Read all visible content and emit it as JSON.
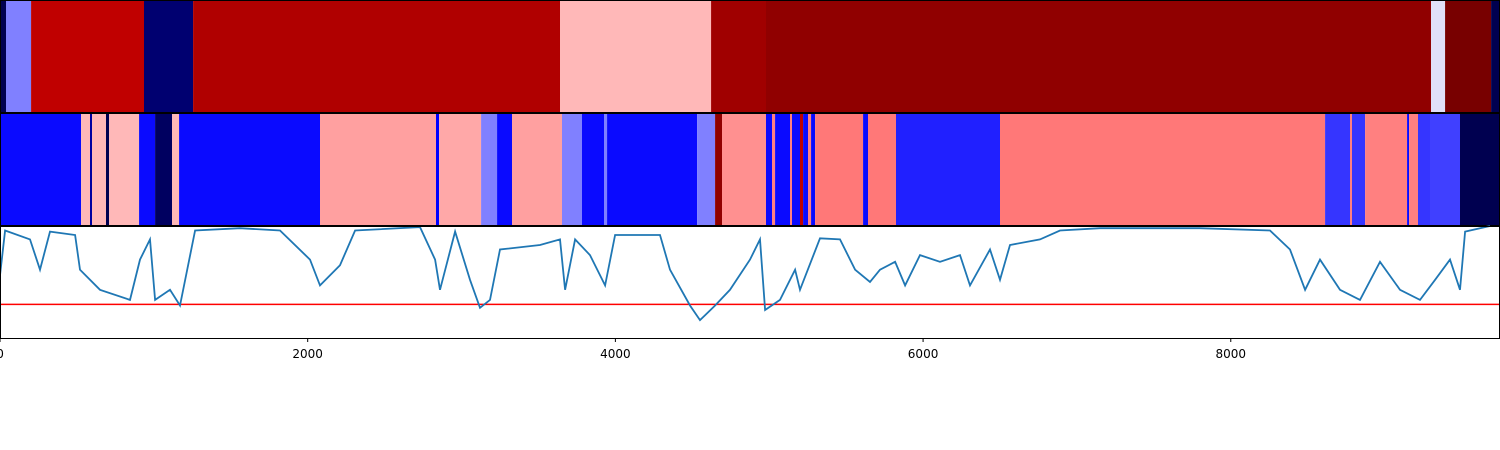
{
  "chart_data": [
    {
      "type": "bands",
      "xlim": [
        0,
        9750
      ],
      "edges": [
        0,
        39,
        202,
        936,
        1255,
        3640,
        4622,
        4979,
        9302,
        9393,
        9692,
        9750
      ],
      "colors": [
        "#000050",
        "#8080ff",
        "#c00000",
        "#000070",
        "#b00000",
        "#ffb8b8",
        "#a00000",
        "#900000",
        "#e0e0f8",
        "#780000",
        "#000050"
      ]
    },
    {
      "type": "bands",
      "xlim": [
        0,
        9750
      ],
      "edges": [
        0,
        527,
        585,
        598,
        689,
        709,
        904,
        1008,
        1118,
        1164,
        2080,
        2834,
        2854,
        3127,
        3231,
        3328,
        3653,
        3783,
        3926,
        3946,
        4531,
        4648,
        4693,
        4979,
        5018,
        5038,
        5135,
        5148,
        5200,
        5220,
        5252,
        5272,
        5298,
        5610,
        5642,
        5824,
        6500,
        8613,
        8775,
        8788,
        8873,
        9146,
        9159,
        9217,
        9295,
        9490,
        9750
      ],
      "colors": [
        "#0a0aff",
        "#ffb8b8",
        "#0000a0",
        "#ffb8b8",
        "#000050",
        "#ffb8b8",
        "#0a0aff",
        "#000060",
        "#ffb8b8",
        "#0a0aff",
        "#ffa0a0",
        "#0000ff",
        "#ffa8a8",
        "#8080ff",
        "#0a0aff",
        "#ffa0a0",
        "#8080ff",
        "#0a0aff",
        "#8080ff",
        "#0a0aff",
        "#8080ff",
        "#900000",
        "#ff9090",
        "#0a0aff",
        "#ff8080",
        "#0a0aff",
        "#ff8080",
        "#0a0aff",
        "#c00000",
        "#0a0aff",
        "#ff8080",
        "#0a0aff",
        "#ff7878",
        "#0a0aff",
        "#ff7878",
        "#2020ff",
        "#ff7878",
        "#3535ff",
        "#ff8080",
        "#3535ff",
        "#ff8080",
        "#0a0aff",
        "#ff8080",
        "#3535ff",
        "#4040ff",
        "#000050"
      ]
    },
    {
      "type": "line",
      "xlim": [
        0,
        9750
      ],
      "ylim": [
        0,
        1
      ],
      "color": "#1f77b4",
      "hline": 0.3,
      "hline_color": "#ff0000",
      "xticks": [
        0,
        2000,
        4000,
        6000,
        8000
      ],
      "x": [
        0,
        33,
        195,
        260,
        325,
        488,
        520,
        650,
        845,
        910,
        975,
        1008,
        1105,
        1170,
        1268,
        1560,
        1820,
        2015,
        2080,
        2210,
        2308,
        2730,
        2828,
        2860,
        2958,
        3055,
        3120,
        3185,
        3250,
        3510,
        3640,
        3673,
        3738,
        3835,
        3933,
        3998,
        4290,
        4355,
        4485,
        4550,
        4648,
        4745,
        4875,
        4940,
        4973,
        5070,
        5168,
        5200,
        5330,
        5460,
        5558,
        5655,
        5720,
        5818,
        5883,
        5980,
        6110,
        6240,
        6305,
        6435,
        6500,
        6565,
        6760,
        6890,
        7150,
        7800,
        8255,
        8385,
        8483,
        8580,
        8710,
        8840,
        8970,
        9100,
        9230,
        9328,
        9425,
        9490,
        9523,
        9685
      ],
      "values": [
        0.56,
        0.96,
        0.88,
        0.61,
        0.95,
        0.92,
        0.61,
        0.43,
        0.34,
        0.7,
        0.88,
        0.34,
        0.43,
        0.29,
        0.96,
        0.98,
        0.96,
        0.7,
        0.47,
        0.65,
        0.96,
        0.99,
        0.7,
        0.43,
        0.95,
        0.52,
        0.27,
        0.34,
        0.79,
        0.83,
        0.88,
        0.43,
        0.88,
        0.74,
        0.47,
        0.92,
        0.92,
        0.61,
        0.29,
        0.16,
        0.29,
        0.43,
        0.7,
        0.88,
        0.25,
        0.34,
        0.61,
        0.43,
        0.89,
        0.88,
        0.61,
        0.5,
        0.61,
        0.68,
        0.47,
        0.74,
        0.68,
        0.74,
        0.47,
        0.79,
        0.52,
        0.83,
        0.88,
        0.96,
        0.98,
        0.98,
        0.96,
        0.79,
        0.43,
        0.7,
        0.43,
        0.34,
        0.68,
        0.43,
        0.34,
        0.52,
        0.7,
        0.43,
        0.95,
        1.0
      ]
    }
  ]
}
